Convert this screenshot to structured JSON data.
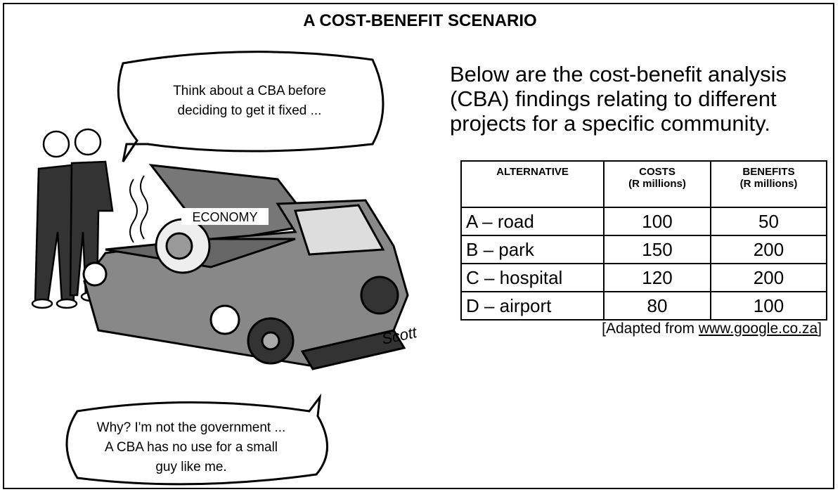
{
  "title": "A COST-BENEFIT SCENARIO",
  "cartoon": {
    "bubble_top": [
      "Think about a CBA before",
      "deciding to get it fixed ..."
    ],
    "label": "ECONOMY",
    "signature": "Scott",
    "bubble_bottom": [
      "Why? I'm not the government ...",
      "A CBA has no use for a small",
      "guy like me."
    ]
  },
  "intro": [
    "Below are the cost-benefit analysis",
    "(CBA) findings relating to different",
    "projects for a specific community."
  ],
  "table": {
    "header": [
      [
        "ALTERNATIVE"
      ],
      [
        "COSTS",
        "(R millions)"
      ],
      [
        "BENEFITS",
        "(R millions)"
      ]
    ],
    "rows": [
      [
        "A – road",
        100,
        50
      ],
      [
        "B – park",
        150,
        200
      ],
      [
        "C – hospital",
        120,
        200
      ],
      [
        "D – airport",
        80,
        100
      ]
    ]
  },
  "source": {
    "prefix": "[Adapted from ",
    "link": "www.google.co.za",
    "suffix": "]"
  }
}
